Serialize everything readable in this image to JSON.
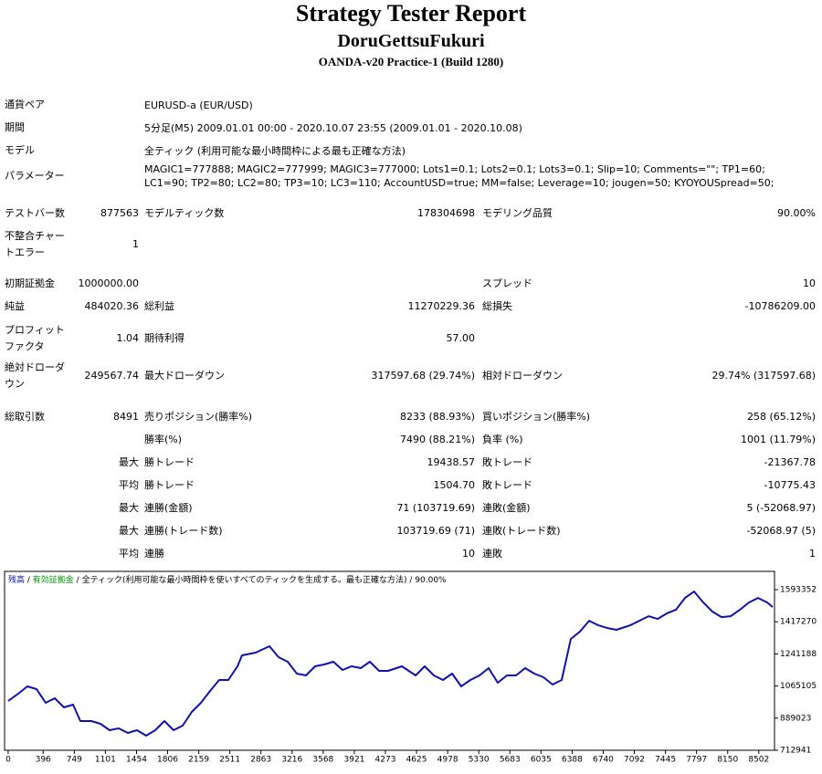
{
  "header": {
    "title": "Strategy Tester Report",
    "subtitle": "DoruGettsuFukuri",
    "server": "OANDA-v20 Practice-1 (Build 1280)"
  },
  "settings": {
    "rows": [
      {
        "label": "通貨ペア",
        "value": "EURUSD-a (EUR/USD)"
      },
      {
        "label": "期間",
        "value": "5分足(M5) 2009.01.01 00:00 - 2020.10.07 23:55 (2009.01.01 - 2020.10.08)"
      },
      {
        "label": "モデル",
        "value": "全ティック (利用可能な最小時間枠による最も正確な方法)"
      },
      {
        "label": "パラメーター",
        "value": "MAGIC1=777888; MAGIC2=777999; MAGIC3=777000; Lots1=0.1; Lots2=0.1; Lots3=0.1; Slip=10; Comments=\"\"; TP1=60; LC1=90; TP2=80; LC2=80; TP3=10; LC3=110; AccountUSD=true; MM=false; Leverage=10; jougen=50; KYOYOUSpread=50;"
      }
    ]
  },
  "stats": {
    "rows": [
      {
        "l1": "テストバー数",
        "v1": "877563",
        "l2": "モデルティック数",
        "v2": "178304698",
        "l3": "モデリング品質",
        "v3": "90.00%"
      },
      {
        "l1": "不整合チャートエラー",
        "v1": "1"
      },
      {
        "l1": "初期証拠金",
        "v1": "1000000.00",
        "l3": "スプレッド",
        "v3": "10"
      },
      {
        "l1": "純益",
        "v1": "484020.36",
        "l2": "総利益",
        "v2": "11270229.36",
        "l3": "総損失",
        "v3": "-10786209.00"
      },
      {
        "l1": "プロフィットファクタ",
        "v1": "1.04",
        "l2": "期待利得",
        "v2": "57.00"
      },
      {
        "l1": "絶対ドローダウン",
        "v1": "249567.74",
        "l2": "最大ドローダウン",
        "v2": "317597.68 (29.74%)",
        "l3": "相対ドローダウン",
        "v3": "29.74% (317597.68)"
      },
      {
        "l1": "総取引数",
        "v1": "8491",
        "l2": "売りポジション(勝率%)",
        "v2": "8233 (88.93%)",
        "l3": "買いポジション(勝率%)",
        "v3": "258 (65.12%)"
      },
      {
        "l2": "勝率(%)",
        "v2": "7490 (88.21%)",
        "l3": "負率 (%)",
        "v3": "1001 (11.79%)"
      },
      {
        "v1": "最大",
        "l2": "勝トレード",
        "v2": "19438.57",
        "l3": "敗トレード",
        "v3": "-21367.78"
      },
      {
        "v1": "平均",
        "l2": "勝トレード",
        "v2": "1504.70",
        "l3": "敗トレード",
        "v3": "-10775.43"
      },
      {
        "v1": "最大",
        "l2": "連勝(金額)",
        "v2": "71 (103719.69)",
        "l3": "連敗(金額)",
        "v3": "5 (-52068.97)"
      },
      {
        "v1": "最大",
        "l2": "連勝(トレード数)",
        "v2": "103719.69 (71)",
        "l3": "連敗(トレード数)",
        "v3": "-52068.97 (5)"
      },
      {
        "v1": "平均",
        "l2": "連勝",
        "v2": "10",
        "l3": "連敗",
        "v3": "1"
      }
    ]
  },
  "chart_data": {
    "type": "line",
    "equity_label": "有効証拠金",
    "equity_color": "#009600",
    "model_label": "全ティック(利用可能な最小時間枠を使いすべてのティックを生成する。最も正確な方法)",
    "quality": "90.00%",
    "xlim": [
      -20,
      8680
    ],
    "xticks": [
      0,
      396,
      749,
      1101,
      1454,
      1806,
      2159,
      2511,
      2863,
      3216,
      3568,
      3921,
      4273,
      4625,
      4978,
      5330,
      5683,
      6035,
      6388,
      6740,
      7092,
      7445,
      7797,
      8150,
      8502
    ],
    "ylim": [
      712941,
      1693500
    ],
    "yticks": [
      712941,
      889023,
      1065105,
      1241188,
      1417270,
      1593352
    ],
    "series": [
      {
        "name": "残高",
        "color": "#1010b0",
        "x": [
          0,
          114,
          218,
          321,
          425,
          528,
          632,
          735,
          818,
          942,
          1046,
          1149,
          1252,
          1356,
          1459,
          1563,
          1666,
          1770,
          1873,
          1977,
          2080,
          2183,
          2287,
          2390,
          2494,
          2597,
          2649,
          2804,
          2959,
          3063,
          3166,
          3270,
          3373,
          3477,
          3580,
          3683,
          3787,
          3890,
          3994,
          4097,
          4201,
          4304,
          4459,
          4615,
          4718,
          4821,
          4925,
          5028,
          5132,
          5235,
          5339,
          5442,
          5546,
          5649,
          5752,
          5856,
          5959,
          6063,
          6166,
          6270,
          6373,
          6477,
          6580,
          6684,
          6787,
          6890,
          7046,
          7149,
          7253,
          7356,
          7459,
          7563,
          7666,
          7770,
          7873,
          7977,
          8080,
          8184,
          8287,
          8390,
          8494,
          8597,
          8659
        ],
        "values": [
          983000,
          1023000,
          1063000,
          1048000,
          973000,
          998000,
          948000,
          963000,
          873000,
          873000,
          858000,
          823000,
          833000,
          808000,
          823000,
          793000,
          823000,
          873000,
          823000,
          848000,
          923000,
          973000,
          1038000,
          1098000,
          1098000,
          1173000,
          1233000,
          1248000,
          1283000,
          1223000,
          1198000,
          1133000,
          1123000,
          1173000,
          1183000,
          1198000,
          1153000,
          1173000,
          1163000,
          1198000,
          1148000,
          1148000,
          1173000,
          1123000,
          1173000,
          1123000,
          1098000,
          1133000,
          1063000,
          1098000,
          1123000,
          1163000,
          1083000,
          1123000,
          1123000,
          1163000,
          1133000,
          1113000,
          1073000,
          1098000,
          1323000,
          1363000,
          1423000,
          1398000,
          1383000,
          1373000,
          1398000,
          1423000,
          1448000,
          1433000,
          1463000,
          1483000,
          1548000,
          1583000,
          1523000,
          1473000,
          1443000,
          1448000,
          1483000,
          1523000,
          1548000,
          1523000,
          1498000
        ]
      }
    ]
  }
}
